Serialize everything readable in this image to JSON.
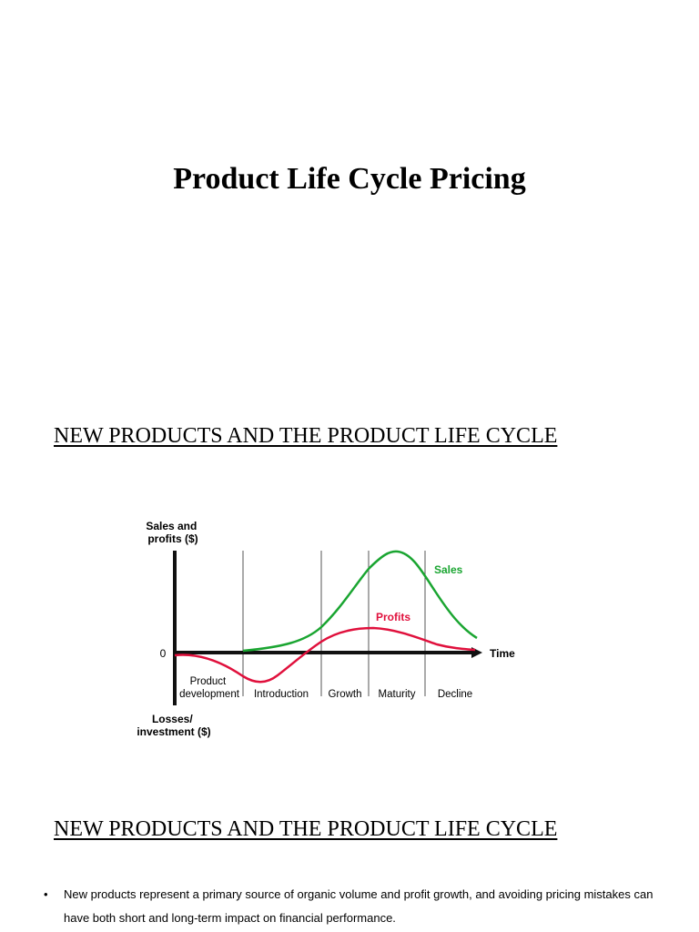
{
  "document": {
    "title": "Product Life Cycle Pricing",
    "section_heading_1": "NEW PRODUCTS AND THE PRODUCT LIFE CYCLE",
    "section_heading_2": "NEW PRODUCTS AND THE PRODUCT LIFE CYCLE",
    "bullets": [
      {
        "marker": "•",
        "text": "New products represent a primary source of organic volume and profit growth, and avoiding pricing mistakes can have both short and long-term impact on financial performance."
      }
    ]
  },
  "figure": {
    "y_label_top_line1": "Sales and",
    "y_label_top_line2": "profits ($)",
    "y_label_bottom_line1": "Losses/",
    "y_label_bottom_line2": "investment ($)",
    "zero_label": "0",
    "x_label": "Time",
    "stage_product_line1": "Product",
    "stage_product_line2": "development",
    "stage_introduction": "Introduction",
    "stage_growth": "Growth",
    "stage_maturity": "Maturity",
    "stage_decline": "Decline",
    "sales_label": "Sales",
    "profits_label": "Profits",
    "colors": {
      "sales": "#1aa531",
      "profits": "#e0103c",
      "axis": "#111111",
      "divider": "#555555"
    }
  }
}
